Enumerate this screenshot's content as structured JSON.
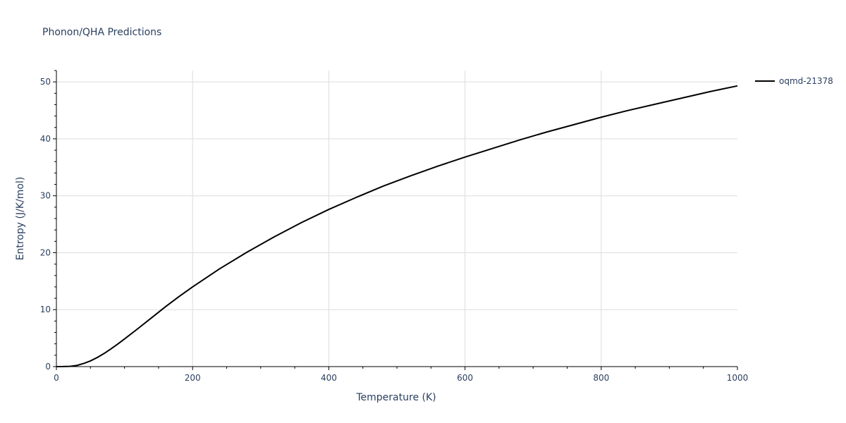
{
  "chart_data": {
    "type": "line",
    "title": "Phonon/QHA Predictions",
    "xlabel": "Temperature (K)",
    "ylabel": "Entropy (J/K/mol)",
    "xlim": [
      0,
      1000
    ],
    "ylim": [
      0,
      52
    ],
    "x_ticks": [
      0,
      200,
      400,
      600,
      800,
      1000
    ],
    "y_ticks": [
      0,
      10,
      20,
      30,
      40,
      50
    ],
    "grid": true,
    "legend_position": "top-right",
    "series": [
      {
        "name": "oqmd-21378",
        "color": "#000000",
        "x": [
          0,
          10,
          20,
          30,
          40,
          50,
          60,
          70,
          80,
          90,
          100,
          120,
          140,
          160,
          180,
          200,
          240,
          280,
          320,
          360,
          400,
          440,
          480,
          520,
          560,
          600,
          640,
          680,
          720,
          760,
          800,
          840,
          880,
          920,
          960,
          1000
        ],
        "y": [
          0,
          0.01,
          0.05,
          0.2,
          0.55,
          1.0,
          1.6,
          2.3,
          3.1,
          3.95,
          4.85,
          6.7,
          8.6,
          10.5,
          12.3,
          14.0,
          17.2,
          20.1,
          22.8,
          25.3,
          27.6,
          29.7,
          31.7,
          33.5,
          35.2,
          36.8,
          38.3,
          39.8,
          41.2,
          42.5,
          43.8,
          45.0,
          46.1,
          47.2,
          48.3,
          49.3
        ]
      }
    ]
  }
}
